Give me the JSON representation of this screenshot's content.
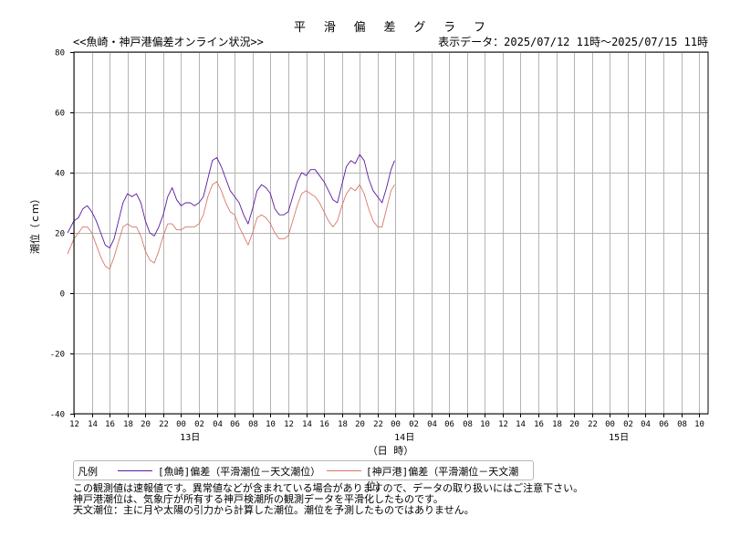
{
  "header": {
    "title": "平 滑 偏 差 グ ラ フ",
    "subtitle": "<<魚崎・神戸港偏差オンライン状況>>",
    "display_range": "表示データ：2025/07/12 11時～2025/07/15 11時"
  },
  "legend": {
    "heading": "凡例",
    "entries": [
      {
        "label": "[魚崎]偏差（平滑潮位－天文潮位）",
        "color": "#5a1aa0"
      },
      {
        "label": "[神戸港]偏差（平滑潮位－天文潮位）",
        "color": "#d9776a"
      }
    ]
  },
  "notes": [
    "この観測値は速報値です。異常値などが含まれている場合がありますので、データの取り扱いにはご注意下さい。",
    "神戸港潮位は、気象庁が所有する神戸検潮所の観測データを平滑化したものです。",
    "天文潮位：主に月や太陽の引力から計算した潮位。潮位を予測したものではありません。"
  ],
  "chart_data": {
    "type": "line",
    "ylabel": "潮位（ｃｍ）",
    "xlabel": "（日 時）",
    "ylim": [
      -40,
      80
    ],
    "yticks": [
      80,
      60,
      40,
      20,
      0,
      -20,
      -40
    ],
    "xlim": [
      12,
      83
    ],
    "xticks": [
      {
        "h": 12,
        "label": "12"
      },
      {
        "h": 14,
        "label": "14"
      },
      {
        "h": 16,
        "label": "16"
      },
      {
        "h": 18,
        "label": "18"
      },
      {
        "h": 20,
        "label": "20"
      },
      {
        "h": 22,
        "label": "22"
      },
      {
        "h": 24,
        "label": "00"
      },
      {
        "h": 26,
        "label": "02"
      },
      {
        "h": 28,
        "label": "04"
      },
      {
        "h": 30,
        "label": "06"
      },
      {
        "h": 32,
        "label": "08"
      },
      {
        "h": 34,
        "label": "10"
      },
      {
        "h": 36,
        "label": "12"
      },
      {
        "h": 38,
        "label": "14"
      },
      {
        "h": 40,
        "label": "16"
      },
      {
        "h": 42,
        "label": "18"
      },
      {
        "h": 44,
        "label": "20"
      },
      {
        "h": 46,
        "label": "22"
      },
      {
        "h": 48,
        "label": "00"
      },
      {
        "h": 50,
        "label": "02"
      },
      {
        "h": 52,
        "label": "04"
      },
      {
        "h": 54,
        "label": "06"
      },
      {
        "h": 56,
        "label": "08"
      },
      {
        "h": 58,
        "label": "10"
      },
      {
        "h": 60,
        "label": "12"
      },
      {
        "h": 62,
        "label": "14"
      },
      {
        "h": 64,
        "label": "16"
      },
      {
        "h": 66,
        "label": "18"
      },
      {
        "h": 68,
        "label": "20"
      },
      {
        "h": 70,
        "label": "22"
      },
      {
        "h": 72,
        "label": "00"
      },
      {
        "h": 74,
        "label": "02"
      },
      {
        "h": 76,
        "label": "04"
      },
      {
        "h": 78,
        "label": "06"
      },
      {
        "h": 80,
        "label": "08"
      },
      {
        "h": 82,
        "label": "10"
      }
    ],
    "day_labels": [
      {
        "h": 25,
        "label": "13日"
      },
      {
        "h": 49,
        "label": "14日"
      },
      {
        "h": 73,
        "label": "15日"
      }
    ],
    "grid": true,
    "series": [
      {
        "name": "[魚崎]偏差（平滑潮位－天文潮位）",
        "color": "#5a1aa0",
        "x": [
          11.3,
          12.0,
          12.5,
          13.0,
          13.5,
          14.0,
          14.5,
          15.0,
          15.5,
          16.0,
          16.5,
          17.0,
          17.5,
          18.0,
          18.5,
          19.0,
          19.5,
          20.0,
          20.5,
          21.0,
          21.5,
          22.0,
          22.5,
          23.0,
          23.5,
          24.0,
          24.5,
          25.0,
          25.5,
          26.0,
          26.5,
          27.0,
          27.5,
          28.0,
          28.5,
          29.0,
          29.5,
          30.0,
          30.5,
          31.0,
          31.5,
          32.0,
          32.5,
          33.0,
          33.5,
          34.0,
          34.5,
          35.0,
          35.5,
          36.0,
          36.5,
          37.0,
          37.5,
          38.0,
          38.5,
          39.0,
          39.5,
          40.0,
          40.5,
          41.0,
          41.5,
          42.0,
          42.5,
          43.0,
          43.5,
          44.0,
          44.5,
          45.0,
          45.5,
          46.0,
          46.5,
          47.0,
          47.5,
          47.9
        ],
        "y": [
          20,
          24,
          25,
          28,
          29,
          27,
          24,
          20,
          16,
          15,
          18,
          24,
          30,
          33,
          32,
          33,
          30,
          24,
          20,
          19,
          22,
          26,
          32,
          35,
          31,
          29,
          30,
          30,
          29,
          30,
          32,
          38,
          44,
          45,
          42,
          38,
          34,
          32,
          30,
          26,
          23,
          28,
          34,
          36,
          35,
          33,
          28,
          26,
          26,
          27,
          32,
          37,
          40,
          39,
          41,
          41,
          39,
          37,
          34,
          31,
          30,
          36,
          42,
          44,
          43,
          46,
          44,
          38,
          34,
          32,
          30,
          35,
          41,
          44
        ]
      },
      {
        "name": "[神戸港]偏差（平滑潮位－天文潮位）",
        "color": "#d9776a",
        "x": [
          11.3,
          12.0,
          12.5,
          13.0,
          13.5,
          14.0,
          14.5,
          15.0,
          15.5,
          16.0,
          16.5,
          17.0,
          17.5,
          18.0,
          18.5,
          19.0,
          19.5,
          20.0,
          20.5,
          21.0,
          21.5,
          22.0,
          22.5,
          23.0,
          23.5,
          24.0,
          24.5,
          25.0,
          25.5,
          26.0,
          26.5,
          27.0,
          27.5,
          28.0,
          28.5,
          29.0,
          29.5,
          30.0,
          30.5,
          31.0,
          31.5,
          32.0,
          32.5,
          33.0,
          33.5,
          34.0,
          34.5,
          35.0,
          35.5,
          36.0,
          36.5,
          37.0,
          37.5,
          38.0,
          38.5,
          39.0,
          39.5,
          40.0,
          40.5,
          41.0,
          41.5,
          42.0,
          42.5,
          43.0,
          43.5,
          44.0,
          44.5,
          45.0,
          45.5,
          46.0,
          46.5,
          47.0,
          47.5,
          47.9
        ],
        "y": [
          13,
          18,
          20,
          22,
          22,
          20,
          16,
          12,
          9,
          8,
          12,
          17,
          22,
          23,
          22,
          22,
          19,
          14,
          11,
          10,
          14,
          19,
          23,
          23,
          21,
          21,
          22,
          22,
          22,
          23,
          26,
          32,
          36,
          37,
          34,
          30,
          27,
          26,
          22,
          19,
          16,
          20,
          25,
          26,
          25,
          23,
          20,
          18,
          18,
          19,
          24,
          29,
          33,
          34,
          33,
          32,
          30,
          27,
          24,
          22,
          24,
          29,
          33,
          35,
          34,
          36,
          33,
          28,
          24,
          22,
          22,
          28,
          34,
          36
        ]
      }
    ]
  }
}
